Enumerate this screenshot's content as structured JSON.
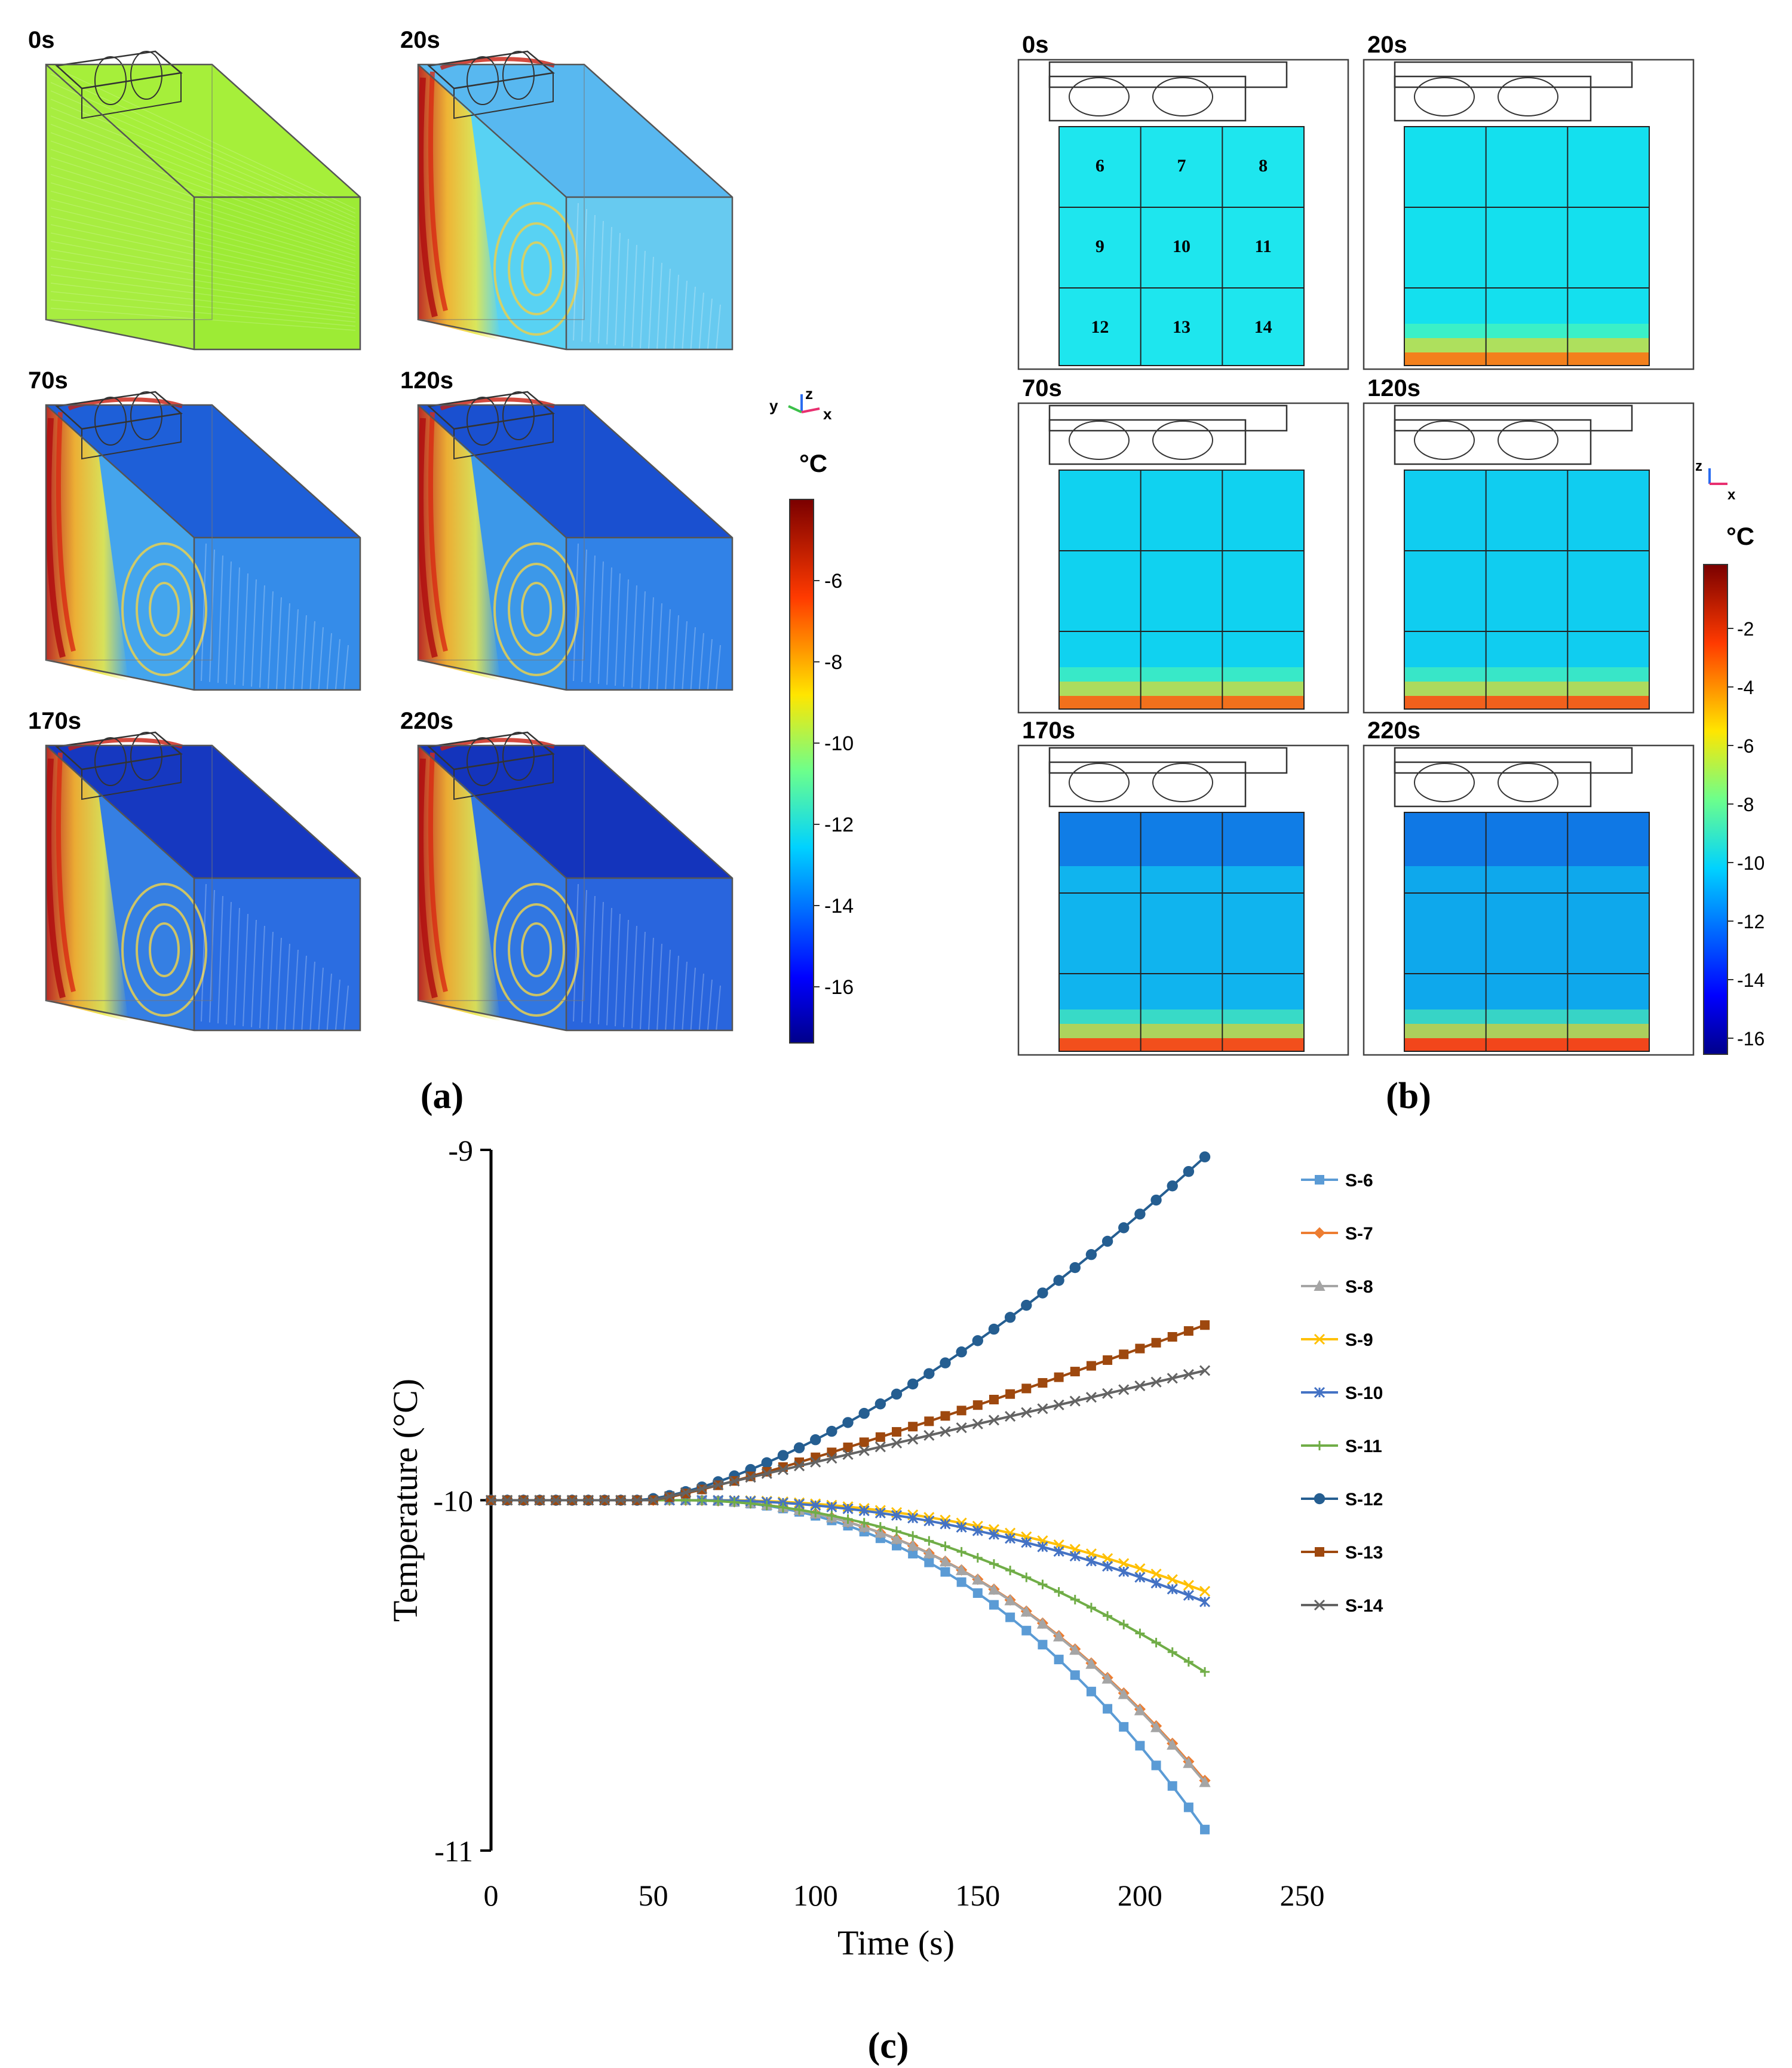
{
  "figure": {
    "panel_a": {
      "caption": "(a)",
      "snapshots": [
        {
          "time": "0s",
          "fill": "#9aea2e",
          "top": "#a6ef3a",
          "side": "#a2ec36"
        },
        {
          "time": "20s",
          "fill": "#62c8f0",
          "top": "#58b8f0",
          "side": "#4fd0f2"
        },
        {
          "time": "70s",
          "fill": "#2e88e8",
          "top": "#1e5fd8",
          "side": "#3aa0ec"
        },
        {
          "time": "120s",
          "fill": "#2a7ee6",
          "top": "#1a50d0",
          "side": "#3292e8"
        },
        {
          "time": "170s",
          "fill": "#2468e0",
          "top": "#1638c0",
          "side": "#2a78e2"
        },
        {
          "time": "220s",
          "fill": "#2260dc",
          "top": "#1434bc",
          "side": "#2670e0"
        }
      ],
      "axes": {
        "x": "x",
        "y": "y",
        "z": "z"
      },
      "colorbar": {
        "unit": "°C",
        "ticks": [
          "-6",
          "-8",
          "-10",
          "-12",
          "-14",
          "-16"
        ]
      }
    },
    "panel_b": {
      "caption": "(b)",
      "snapshots": [
        {
          "time": "0s",
          "fill": "#1ee6ee",
          "bottom": "#1ee6ee"
        },
        {
          "time": "20s",
          "fill": "#14e0ee",
          "bottom": "#ff7a10"
        },
        {
          "time": "70s",
          "fill": "#10d2f0",
          "bottom": "#ff6a10"
        },
        {
          "time": "120s",
          "fill": "#10cdf0",
          "bottom": "#ff5a10"
        },
        {
          "time": "170s",
          "fill": "#10b4ee",
          "bottom": "#ff4a10"
        },
        {
          "time": "220s",
          "fill": "#0ea8ec",
          "bottom": "#ff4010"
        }
      ],
      "cell_labels": [
        "6",
        "7",
        "8",
        "9",
        "10",
        "11",
        "12",
        "13",
        "14"
      ],
      "axes": {
        "x": "x",
        "z": "z"
      },
      "colorbar": {
        "unit": "°C",
        "ticks": [
          "-2",
          "-4",
          "-6",
          "-8",
          "-10",
          "-12",
          "-14",
          "-16"
        ]
      }
    },
    "panel_c": {
      "caption": "(c)"
    }
  },
  "chart_data": {
    "type": "line",
    "title": "",
    "xlabel": "Time (s)",
    "ylabel": "Temperature (°C)",
    "xlim": [
      0,
      250
    ],
    "ylim": [
      -11,
      -9
    ],
    "xticks": [
      0,
      50,
      100,
      150,
      200,
      250
    ],
    "yticks": [
      -9,
      -10,
      -11
    ],
    "t_start": 0,
    "t_step": 5,
    "t_end": 220,
    "legend_position": "right",
    "series": [
      {
        "name": "S-6",
        "color": "#5b9bd5",
        "marker": "square",
        "onset": 60,
        "end_value": -10.94,
        "power": 2.2
      },
      {
        "name": "S-7",
        "color": "#ed7d31",
        "marker": "diamond",
        "onset": 60,
        "end_value": -10.8,
        "power": 2.2
      },
      {
        "name": "S-8",
        "color": "#a5a5a5",
        "marker": "triangle",
        "onset": 60,
        "end_value": -10.805,
        "power": 2.2
      },
      {
        "name": "S-9",
        "color": "#ffc000",
        "marker": "x",
        "onset": 70,
        "end_value": -10.26,
        "power": 2.0
      },
      {
        "name": "S-10",
        "color": "#4472c4",
        "marker": "star",
        "onset": 65,
        "end_value": -10.29,
        "power": 2.0
      },
      {
        "name": "S-11",
        "color": "#70ad47",
        "marker": "plus",
        "onset": 60,
        "end_value": -10.49,
        "power": 1.9
      },
      {
        "name": "S-12",
        "color": "#255e91",
        "marker": "circle",
        "onset": 45,
        "end_value": -9.02,
        "power": 1.5
      },
      {
        "name": "S-13",
        "color": "#9e480e",
        "marker": "square",
        "onset": 50,
        "end_value": -9.5,
        "power": 1.15
      },
      {
        "name": "S-14",
        "color": "#636363",
        "marker": "x",
        "onset": 50,
        "end_value": -9.63,
        "power": 1.0
      }
    ]
  }
}
